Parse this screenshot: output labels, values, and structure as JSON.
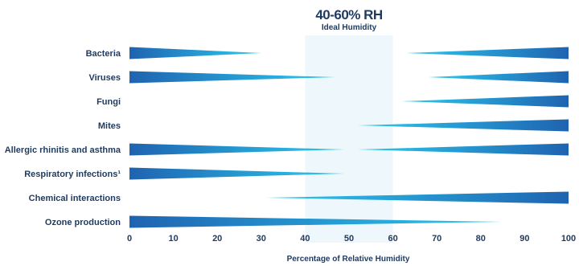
{
  "chart_data": {
    "type": "bar",
    "title": "",
    "xlabel": "Percentage of Relative Humidity",
    "ylabel": "",
    "xlim": [
      0,
      100
    ],
    "x_ticks": [
      "0",
      "10",
      "20",
      "30",
      "40",
      "50",
      "60",
      "70",
      "80",
      "90",
      "100"
    ],
    "highlight_band": {
      "range": [
        40,
        60
      ],
      "title": "40-60% RH",
      "subtitle": "Ideal Humidity"
    },
    "categories": [
      "Bacteria",
      "Viruses",
      "Fungi",
      "Mites",
      "Allergic rhinitis and asthma",
      "Respiratory infections¹",
      "Chemical interactions",
      "Ozone production"
    ],
    "series": [
      {
        "values": [
          [
            [
              0,
              30
            ],
            [
              63,
              100
            ]
          ],
          [
            [
              0,
              47
            ],
            [
              68,
              100
            ]
          ],
          [
            [
              62,
              100
            ]
          ],
          [
            [
              52,
              100
            ]
          ],
          [
            [
              0,
              49
            ],
            [
              52,
              100
            ]
          ],
          [
            [
              0,
              49
            ]
          ],
          [
            [
              31,
              100
            ]
          ],
          [
            [
              0,
              85
            ]
          ]
        ]
      }
    ],
    "colors": {
      "dark": "#1f63b0",
      "light": "#2ccbf0",
      "band": "#eef7fb",
      "text": "#1f3a5f"
    }
  }
}
